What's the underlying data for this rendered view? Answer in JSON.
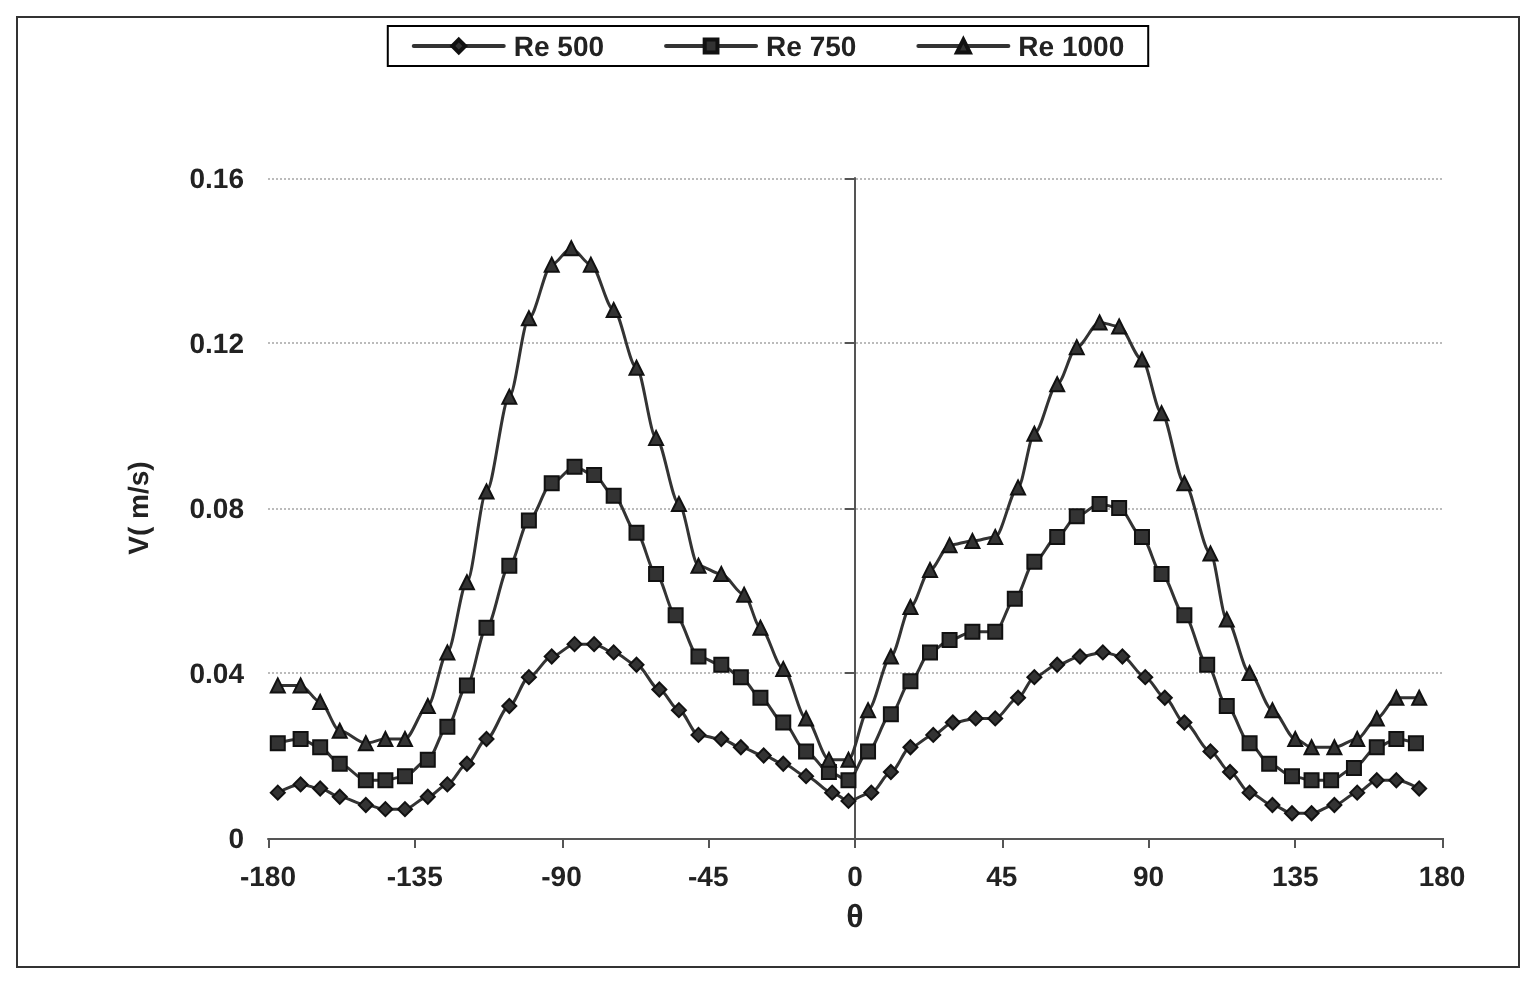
{
  "chart_data": {
    "type": "line",
    "xlabel": "θ",
    "ylabel": "V( m/s)",
    "xlim": [
      -180,
      180
    ],
    "xticks": [
      -180,
      -135,
      -90,
      -45,
      0,
      45,
      90,
      135,
      180
    ],
    "ylim": [
      0,
      0.16
    ],
    "yticks": [
      0,
      0.04,
      0.08,
      0.12,
      0.16
    ],
    "grid": "y",
    "legend": "top",
    "line_style": "solid",
    "series": [
      {
        "name": "Re 500",
        "color": "#333333",
        "marker": "diamond",
        "x": [
          -177,
          -170,
          -164,
          -158,
          -150,
          -144,
          -138,
          -131,
          -125,
          -119,
          -113,
          -106,
          -100,
          -93,
          -86,
          -80,
          -74,
          -67,
          -60,
          -54,
          -48,
          -41,
          -35,
          -28,
          -22,
          -15,
          -7,
          -2,
          5,
          11,
          17,
          24,
          30,
          37,
          43,
          50,
          55,
          62,
          69,
          76,
          82,
          89,
          95,
          101,
          109,
          115,
          121,
          128,
          134,
          140,
          147,
          154,
          160,
          166,
          173
        ],
        "values": [
          0.011,
          0.013,
          0.012,
          0.01,
          0.008,
          0.007,
          0.007,
          0.01,
          0.013,
          0.018,
          0.024,
          0.032,
          0.039,
          0.044,
          0.047,
          0.047,
          0.045,
          0.042,
          0.036,
          0.031,
          0.025,
          0.024,
          0.022,
          0.02,
          0.018,
          0.015,
          0.011,
          0.009,
          0.011,
          0.016,
          0.022,
          0.025,
          0.028,
          0.029,
          0.029,
          0.034,
          0.039,
          0.042,
          0.044,
          0.045,
          0.044,
          0.039,
          0.034,
          0.028,
          0.021,
          0.016,
          0.011,
          0.008,
          0.006,
          0.006,
          0.008,
          0.011,
          0.014,
          0.014,
          0.012
        ]
      },
      {
        "name": "Re 750",
        "color": "#333333",
        "marker": "square",
        "x": [
          -177,
          -170,
          -164,
          -158,
          -150,
          -144,
          -138,
          -131,
          -125,
          -119,
          -113,
          -106,
          -100,
          -93,
          -86,
          -80,
          -74,
          -67,
          -61,
          -55,
          -48,
          -41,
          -35,
          -29,
          -22,
          -15,
          -8,
          -2,
          4,
          11,
          17,
          23,
          29,
          36,
          43,
          49,
          55,
          62,
          68,
          75,
          81,
          88,
          94,
          101,
          108,
          114,
          121,
          127,
          134,
          140,
          146,
          153,
          160,
          166,
          172
        ],
        "values": [
          0.023,
          0.024,
          0.022,
          0.018,
          0.014,
          0.014,
          0.015,
          0.019,
          0.027,
          0.037,
          0.051,
          0.066,
          0.077,
          0.086,
          0.09,
          0.088,
          0.083,
          0.074,
          0.064,
          0.054,
          0.044,
          0.042,
          0.039,
          0.034,
          0.028,
          0.021,
          0.016,
          0.014,
          0.021,
          0.03,
          0.038,
          0.045,
          0.048,
          0.05,
          0.05,
          0.058,
          0.067,
          0.073,
          0.078,
          0.081,
          0.08,
          0.073,
          0.064,
          0.054,
          0.042,
          0.032,
          0.023,
          0.018,
          0.015,
          0.014,
          0.014,
          0.017,
          0.022,
          0.024,
          0.023
        ]
      },
      {
        "name": "Re 1000",
        "color": "#333333",
        "marker": "triangle",
        "x": [
          -177,
          -170,
          -164,
          -158,
          -150,
          -144,
          -138,
          -131,
          -125,
          -119,
          -113,
          -106,
          -100,
          -93,
          -87,
          -81,
          -74,
          -67,
          -61,
          -54,
          -48,
          -41,
          -34,
          -29,
          -22,
          -15,
          -8,
          -2,
          4,
          11,
          17,
          23,
          29,
          36,
          43,
          50,
          55,
          62,
          68,
          75,
          81,
          88,
          94,
          101,
          109,
          114,
          121,
          128,
          135,
          140,
          147,
          154,
          160,
          166,
          173
        ],
        "values": [
          0.037,
          0.037,
          0.033,
          0.026,
          0.023,
          0.024,
          0.024,
          0.032,
          0.045,
          0.062,
          0.084,
          0.107,
          0.126,
          0.139,
          0.143,
          0.139,
          0.128,
          0.114,
          0.097,
          0.081,
          0.066,
          0.064,
          0.059,
          0.051,
          0.041,
          0.029,
          0.019,
          0.019,
          0.031,
          0.044,
          0.056,
          0.065,
          0.071,
          0.072,
          0.073,
          0.085,
          0.098,
          0.11,
          0.119,
          0.125,
          0.124,
          0.116,
          0.103,
          0.086,
          0.069,
          0.053,
          0.04,
          0.031,
          0.024,
          0.022,
          0.022,
          0.024,
          0.029,
          0.034,
          0.034
        ]
      }
    ]
  }
}
